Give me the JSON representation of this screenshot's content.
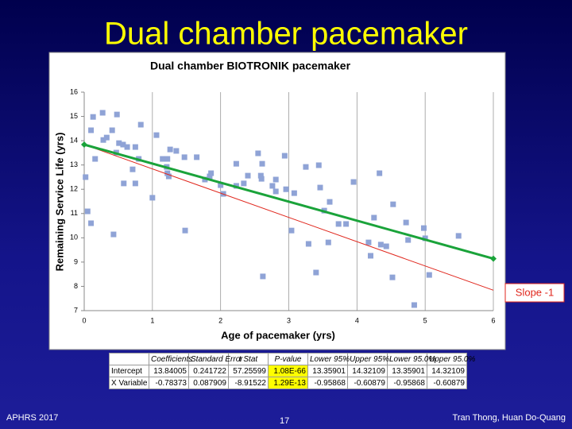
{
  "slide_title": "Dual chamber pacemaker",
  "chart_data": {
    "type": "scatter",
    "title": "Dual chamber BIOTRONIK pacemaker",
    "x_label": "Age of pacemaker  (yrs)",
    "y_label": "Remaining Service Life (yrs)",
    "xlim": [
      0,
      6
    ],
    "xticks": [
      0,
      1,
      2,
      3,
      4,
      5,
      6
    ],
    "ylim": [
      7,
      16
    ],
    "yticks": [
      7,
      8,
      9,
      10,
      11,
      12,
      13,
      14,
      15,
      16
    ],
    "grid": true,
    "color": "#8fa3d6",
    "x": [
      0.02,
      0.05,
      0.1,
      0.1,
      0.13,
      0.16,
      0.27,
      0.28,
      0.33,
      0.41,
      0.43,
      0.48,
      0.47,
      0.51,
      0.57,
      0.58,
      0.63,
      0.71,
      0.75,
      0.75,
      0.8,
      0.83,
      1.0,
      1.06,
      1.15,
      1.21,
      1.22,
      1.22,
      1.24,
      1.26,
      1.35,
      1.47,
      1.48,
      1.65,
      1.77,
      1.84,
      1.86,
      2.0,
      2.04,
      2.23,
      2.23,
      2.34,
      2.4,
      2.55,
      2.59,
      2.6,
      2.61,
      2.62,
      2.76,
      2.81,
      2.81,
      2.94,
      2.96,
      3.04,
      3.08,
      3.25,
      3.29,
      3.4,
      3.44,
      3.46,
      3.52,
      3.58,
      3.6,
      3.73,
      3.84,
      3.95,
      4.17,
      4.2,
      4.25,
      4.33,
      4.35,
      4.43,
      4.52,
      4.53,
      4.72,
      4.75,
      4.84,
      4.98,
      5.0,
      5.06,
      5.49
    ],
    "values": [
      12.5,
      11.09,
      10.6,
      14.43,
      14.98,
      13.25,
      15.15,
      14.03,
      14.13,
      14.43,
      10.14,
      15.08,
      13.51,
      13.9,
      13.84,
      12.24,
      13.74,
      12.82,
      13.74,
      12.24,
      13.25,
      14.66,
      11.65,
      14.23,
      13.25,
      12.92,
      13.25,
      12.66,
      12.53,
      13.64,
      13.58,
      13.32,
      10.3,
      13.32,
      12.4,
      12.53,
      12.66,
      12.17,
      11.81,
      13.05,
      12.14,
      12.24,
      12.56,
      13.48,
      12.56,
      12.43,
      13.05,
      8.41,
      12.14,
      12.4,
      11.91,
      13.38,
      12.0,
      10.3,
      11.84,
      12.92,
      9.75,
      8.57,
      12.99,
      12.07,
      11.12,
      9.81,
      11.48,
      10.57,
      10.57,
      12.3,
      9.81,
      9.26,
      10.83,
      12.66,
      9.72,
      9.65,
      8.37,
      11.38,
      10.63,
      9.91,
      7.23,
      10.4,
      9.98,
      8.47,
      10.08
    ],
    "fit_line": {
      "x": [
        0,
        6
      ],
      "values": [
        13.84,
        9.14
      ],
      "color": "#1aa33a"
    },
    "slope_line": {
      "x": [
        0,
        6
      ],
      "values": [
        13.84,
        7.84
      ],
      "color": "#e0261c",
      "label": "Slope -1"
    }
  },
  "table": {
    "header": [
      "",
      "Coefficients",
      "Standard Error",
      "t Stat",
      "P-value",
      "Lower 95%",
      "Upper 95%",
      "Lower 95.0%",
      "Upper 95.0%"
    ],
    "rows": [
      [
        "Intercept",
        "13.84005",
        "0.241722",
        "57.25599",
        "1.08E-66",
        "13.35901",
        "14.32109",
        "13.35901",
        "14.32109"
      ],
      [
        "X Variable",
        "-0.78373",
        "0.087909",
        "-8.91522",
        "1.29E-13",
        "-0.95868",
        "-0.60879",
        "-0.95868",
        "-0.60879"
      ]
    ]
  },
  "footer": {
    "left": "APHRS 2017",
    "page": "17",
    "right": "Tran Thong, Huan Do-Quang"
  }
}
